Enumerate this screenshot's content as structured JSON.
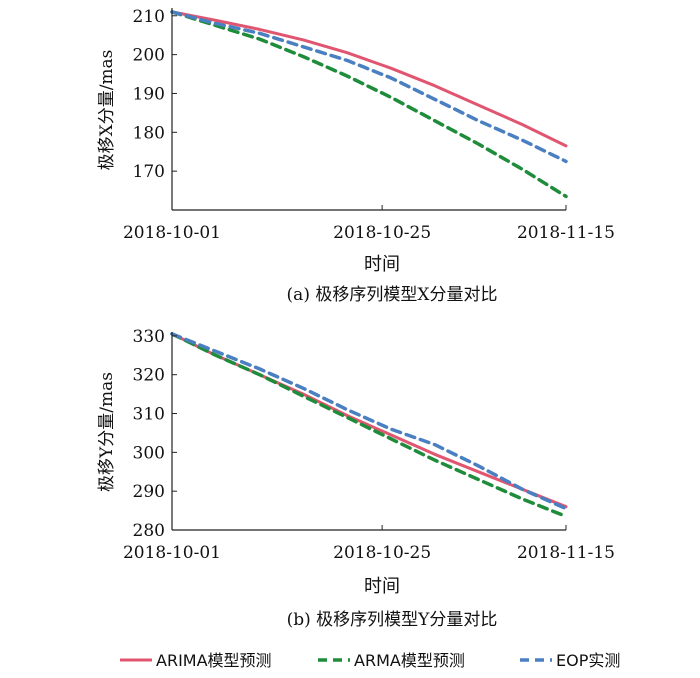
{
  "chart_data": [
    {
      "type": "line",
      "caption": "(a) 极移序列模型X分量对比",
      "xlabel": "时间",
      "ylabel": "极移X分量/mas",
      "x_ticks": [
        "2018-10-01",
        "2018-10-25",
        "2018-11-15"
      ],
      "y_ticks": [
        170,
        180,
        190,
        200,
        210
      ],
      "ylim": [
        160,
        212
      ],
      "x": [
        "2018-10-01",
        "2018-10-06",
        "2018-10-11",
        "2018-10-16",
        "2018-10-21",
        "2018-10-26",
        "2018-10-31",
        "2018-11-05",
        "2018-11-10",
        "2018-11-15"
      ],
      "series": [
        {
          "name": "ARIMA模型预测",
          "color": "#e05570",
          "dash": "solid",
          "values": [
            211.0,
            208.8,
            206.5,
            203.8,
            200.5,
            196.5,
            192.0,
            187.0,
            182.0,
            176.5
          ]
        },
        {
          "name": "ARMA模型预测",
          "color": "#1e8c3a",
          "dash": "dashed",
          "values": [
            211.0,
            207.5,
            204.0,
            199.5,
            194.5,
            189.0,
            183.0,
            177.0,
            170.5,
            163.5
          ]
        },
        {
          "name": "EOP实测",
          "color": "#4a7fc1",
          "dash": "dashed",
          "values": [
            211.0,
            208.0,
            205.5,
            202.0,
            198.5,
            194.0,
            188.5,
            183.0,
            178.0,
            172.5
          ]
        }
      ]
    },
    {
      "type": "line",
      "caption": "(b) 极移序列模型Y分量对比",
      "xlabel": "时间",
      "ylabel": "极移Y分量/mas",
      "x_ticks": [
        "2018-10-01",
        "2018-10-25",
        "2018-11-15"
      ],
      "y_ticks": [
        280,
        290,
        300,
        310,
        320,
        330
      ],
      "ylim": [
        280,
        331
      ],
      "x": [
        "2018-10-01",
        "2018-10-06",
        "2018-10-11",
        "2018-10-16",
        "2018-10-21",
        "2018-10-26",
        "2018-10-31",
        "2018-11-05",
        "2018-11-10",
        "2018-11-15"
      ],
      "series": [
        {
          "name": "ARIMA模型预测",
          "color": "#e05570",
          "dash": "solid",
          "values": [
            330.5,
            325.0,
            320.0,
            315.0,
            309.5,
            304.5,
            299.5,
            295.0,
            290.5,
            286.0
          ]
        },
        {
          "name": "ARMA模型预测",
          "color": "#1e8c3a",
          "dash": "dashed",
          "values": [
            330.5,
            325.0,
            320.0,
            314.5,
            309.0,
            303.5,
            298.0,
            293.0,
            288.0,
            283.5
          ]
        },
        {
          "name": "EOP实测",
          "color": "#4a7fc1",
          "dash": "dashed",
          "values": [
            330.5,
            326.0,
            321.5,
            316.5,
            311.0,
            306.0,
            302.0,
            296.5,
            290.5,
            285.5
          ]
        }
      ]
    }
  ],
  "legend": {
    "placement": "bottom",
    "items": [
      {
        "label": "ARIMA模型预测",
        "color": "#e05570",
        "dash": "solid"
      },
      {
        "label": "ARMA模型预测",
        "color": "#1e8c3a",
        "dash": "dashed"
      },
      {
        "label": "EOP实测",
        "color": "#4a7fc1",
        "dash": "dashed"
      }
    ]
  }
}
